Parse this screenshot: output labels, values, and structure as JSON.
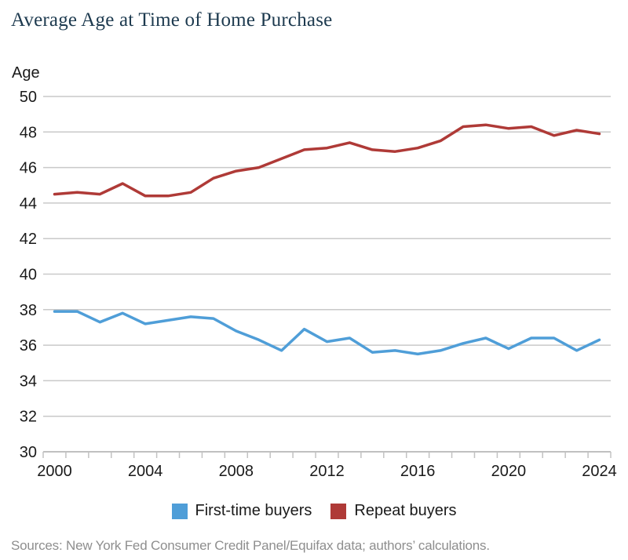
{
  "title": "Average Age at Time of Home Purchase",
  "source_note": "Sources: New York Fed Consumer Credit Panel/Equifax data; authors’ calculations.",
  "colors": {
    "title_text": "#1d3a4f",
    "axis_text": "#1a1a1a",
    "grid": "#c9c9c9",
    "axis_line": "#b3b3b3",
    "tick_mark": "#c2c2c2",
    "source_text": "#8e8e8e",
    "first_time_blue": "#4f9ed8",
    "repeat_red": "#af3a37",
    "background": "#ffffff"
  },
  "chart_data": {
    "type": "line",
    "title": "Average Age at Time of Home Purchase",
    "xlabel": "",
    "ylabel": "Age",
    "xlim": [
      1999.5,
      2024.5
    ],
    "ylim": [
      30,
      50
    ],
    "yticks": [
      30,
      32,
      34,
      36,
      38,
      40,
      42,
      44,
      46,
      48,
      50
    ],
    "xtick_labels": [
      2000,
      2004,
      2008,
      2012,
      2016,
      2020,
      2024
    ],
    "grid": true,
    "legend_position": "bottom",
    "x": [
      2000,
      2001,
      2002,
      2003,
      2004,
      2005,
      2006,
      2007,
      2008,
      2009,
      2010,
      2011,
      2012,
      2013,
      2014,
      2015,
      2016,
      2017,
      2018,
      2019,
      2020,
      2021,
      2022,
      2023,
      2024
    ],
    "series": [
      {
        "name": "First-time buyers",
        "color": "#4f9ed8",
        "values": [
          37.9,
          37.9,
          37.3,
          37.8,
          37.2,
          37.4,
          37.6,
          37.5,
          36.8,
          36.3,
          35.7,
          36.9,
          36.2,
          36.4,
          35.6,
          35.7,
          35.5,
          35.7,
          36.1,
          36.4,
          35.8,
          36.4,
          36.4,
          35.7,
          36.3
        ]
      },
      {
        "name": "Repeat buyers",
        "color": "#af3a37",
        "values": [
          44.5,
          44.6,
          44.5,
          45.1,
          44.4,
          44.4,
          44.6,
          45.4,
          45.8,
          46.0,
          46.5,
          47.0,
          47.1,
          47.4,
          47.0,
          46.9,
          47.1,
          47.5,
          48.3,
          48.4,
          48.2,
          48.3,
          47.8,
          48.1,
          47.9
        ]
      }
    ]
  }
}
